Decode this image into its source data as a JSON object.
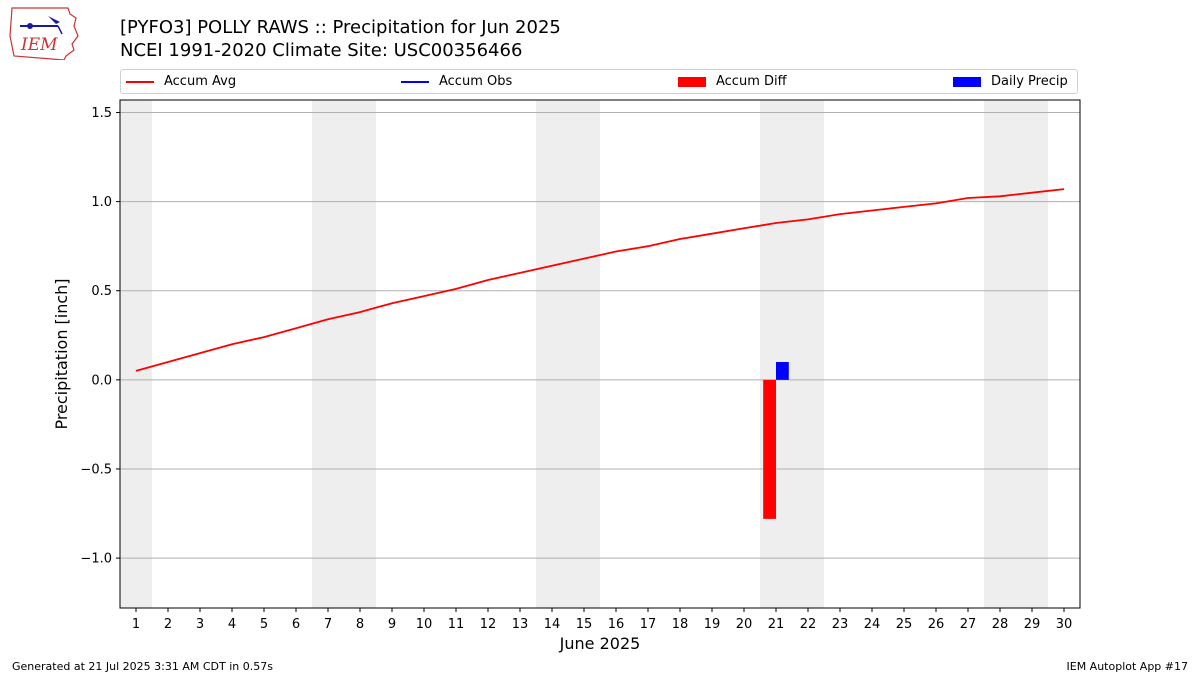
{
  "logo": {
    "text": "IEM"
  },
  "title": {
    "line1": "[PYFO3] POLLY RAWS :: Precipitation for Jun 2025",
    "line2": "NCEI 1991-2020 Climate Site: USC00356466"
  },
  "footer": {
    "left": "Generated at 21 Jul 2025 3:31 AM CDT in 0.57s",
    "right": "IEM Autoplot App #17"
  },
  "colors": {
    "avg": "#ff0000",
    "obs": "#0000ff",
    "diff": "#ff0000",
    "daily": "#0000ff",
    "weekend": "#eeeeee",
    "grid": "#b0b0b0"
  },
  "chart_data": {
    "type": "line",
    "xlabel": "June 2025",
    "ylabel": "Precipitation [inch]",
    "xlim": [
      0.5,
      30.5
    ],
    "ylim": [
      -1.28,
      1.57
    ],
    "x_ticks": [
      1,
      2,
      3,
      4,
      5,
      6,
      7,
      8,
      9,
      10,
      11,
      12,
      13,
      14,
      15,
      16,
      17,
      18,
      19,
      20,
      21,
      22,
      23,
      24,
      25,
      26,
      27,
      28,
      29,
      30
    ],
    "y_ticks": [
      -1.0,
      -0.5,
      0.0,
      0.5,
      1.0,
      1.5
    ],
    "y_tick_labels": [
      "−1.0",
      "−0.5",
      "0.0",
      "0.5",
      "1.0",
      "1.5"
    ],
    "grid": "horizontal",
    "legend": [
      "Accum Avg",
      "Accum Obs",
      "Accum Diff",
      "Daily Precip"
    ],
    "weekend_spans": [
      [
        0.5,
        1.5
      ],
      [
        6.5,
        8.5
      ],
      [
        13.5,
        15.5
      ],
      [
        20.5,
        22.5
      ],
      [
        27.5,
        29.5
      ]
    ],
    "series": [
      {
        "name": "Accum Avg",
        "kind": "line",
        "x": [
          1,
          2,
          3,
          4,
          5,
          6,
          7,
          8,
          9,
          10,
          11,
          12,
          13,
          14,
          15,
          16,
          17,
          18,
          19,
          20,
          21,
          22,
          23,
          24,
          25,
          26,
          27,
          28,
          29,
          30
        ],
        "values": [
          0.05,
          0.1,
          0.15,
          0.2,
          0.24,
          0.29,
          0.34,
          0.38,
          0.43,
          0.47,
          0.51,
          0.56,
          0.6,
          0.64,
          0.68,
          0.72,
          0.75,
          0.79,
          0.82,
          0.85,
          0.88,
          0.9,
          0.93,
          0.95,
          0.97,
          0.99,
          1.02,
          1.03,
          1.05,
          1.07
        ]
      },
      {
        "name": "Accum Obs",
        "kind": "line",
        "x": [],
        "values": []
      },
      {
        "name": "Accum Diff",
        "kind": "bar",
        "x": [
          21
        ],
        "values": [
          -0.78
        ]
      },
      {
        "name": "Daily Precip",
        "kind": "bar",
        "x": [
          21
        ],
        "values": [
          0.1
        ]
      }
    ]
  }
}
